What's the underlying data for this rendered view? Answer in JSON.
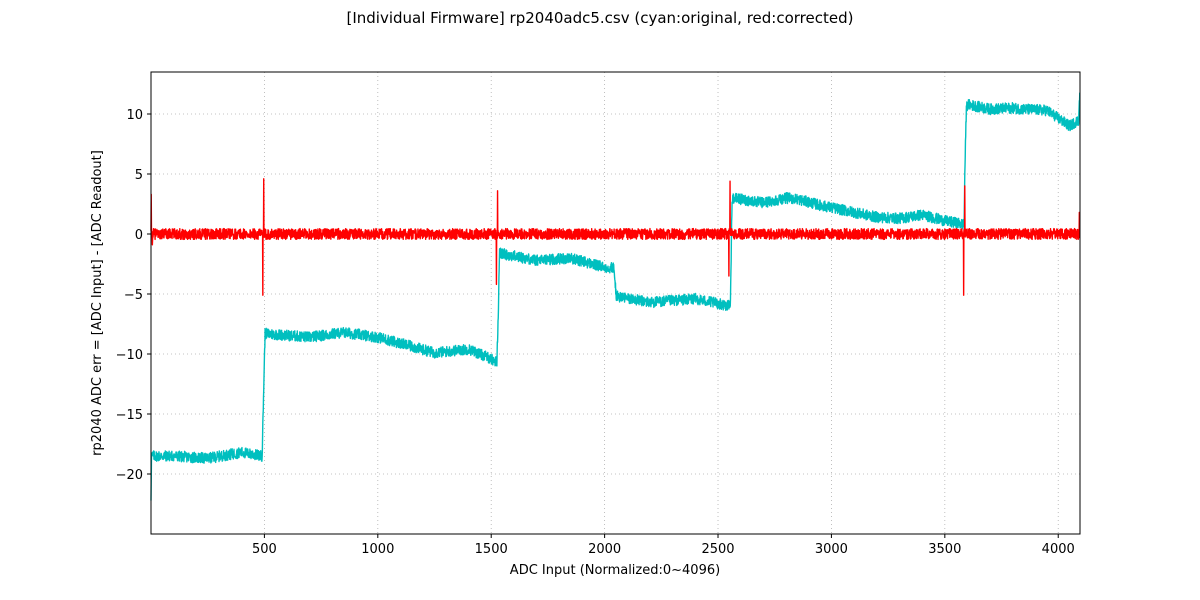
{
  "chart_data": {
    "type": "line",
    "title": "[Individual Firmware] rp2040adc5.csv (cyan:original, red:corrected)",
    "xlabel": "ADC Input (Normalized:0~4096)",
    "ylabel": "rp2040 ADC err = [ADC Input] - [ADC Readout]",
    "xlim": [
      0,
      4096
    ],
    "ylim": [
      -25,
      13.5
    ],
    "xticks": [
      500,
      1000,
      1500,
      2000,
      2500,
      3000,
      3500,
      4000
    ],
    "yticks": [
      -20,
      -15,
      -10,
      -5,
      0,
      5,
      10
    ],
    "grid": true,
    "series": [
      {
        "name": "original",
        "color": "#00bfbf",
        "noise": 0.45,
        "x": [
          0,
          2,
          100,
          250,
          400,
          490,
          498,
          503,
          700,
          850,
          1000,
          1250,
          1400,
          1500,
          1525,
          1532,
          1536,
          1700,
          1850,
          2000,
          2040,
          2052,
          2200,
          2400,
          2550,
          2555,
          2562,
          2700,
          2800,
          2850,
          2950,
          3050,
          3200,
          3300,
          3400,
          3500,
          3585,
          3588,
          3595,
          3600,
          3700,
          3800,
          3850,
          3950,
          4050,
          4090,
          4095
        ],
        "y": [
          -22,
          -18.5,
          -18.5,
          -18.7,
          -18.2,
          -18.5,
          -12,
          -8.3,
          -8.6,
          -8.2,
          -8.6,
          -9.9,
          -9.6,
          -10.4,
          -10.7,
          -6,
          -1.6,
          -2.2,
          -2.0,
          -2.8,
          -2.8,
          -5.2,
          -5.7,
          -5.4,
          -6.0,
          -5.5,
          3.0,
          2.6,
          3.0,
          2.9,
          2.4,
          2.0,
          1.4,
          1.3,
          1.6,
          1.1,
          0.8,
          5,
          10.5,
          10.8,
          10.4,
          10.5,
          10.4,
          10.3,
          9.0,
          9.5,
          11.8
        ]
      },
      {
        "name": "corrected",
        "color": "#ff0000",
        "noise": 0.45,
        "x": [
          0,
          4095
        ],
        "y": [
          0,
          0
        ],
        "spikes": [
          {
            "x": 1,
            "y": 3.3
          },
          {
            "x": 6,
            "y": -0.9
          },
          {
            "x": 493,
            "y": -5.1
          },
          {
            "x": 497,
            "y": 4.6
          },
          {
            "x": 1523,
            "y": -4.2
          },
          {
            "x": 1528,
            "y": 3.6
          },
          {
            "x": 2548,
            "y": -3.5
          },
          {
            "x": 2553,
            "y": 4.4
          },
          {
            "x": 3583,
            "y": -5.1
          },
          {
            "x": 3588,
            "y": 4.0
          },
          {
            "x": 4093,
            "y": 1.8
          }
        ]
      }
    ]
  }
}
